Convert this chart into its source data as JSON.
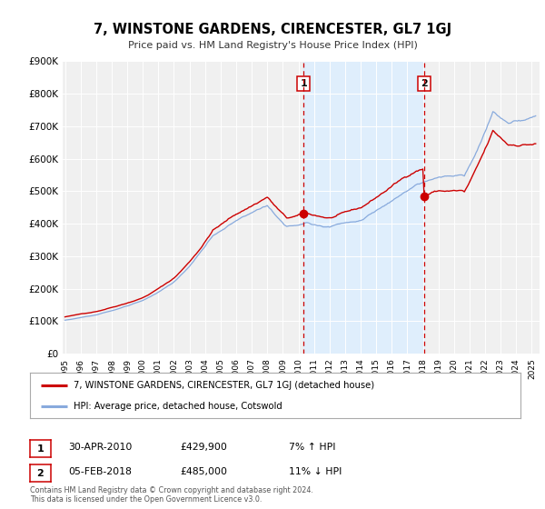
{
  "title": "7, WINSTONE GARDENS, CIRENCESTER, GL7 1GJ",
  "subtitle": "Price paid vs. HM Land Registry's House Price Index (HPI)",
  "ylim": [
    0,
    900000
  ],
  "yticks": [
    0,
    100000,
    200000,
    300000,
    400000,
    500000,
    600000,
    700000,
    800000,
    900000
  ],
  "ytick_labels": [
    "£0",
    "£100K",
    "£200K",
    "£300K",
    "£400K",
    "£500K",
    "£600K",
    "£700K",
    "£800K",
    "£900K"
  ],
  "xlim_start": 1994.85,
  "xlim_end": 2025.5,
  "xticks": [
    1995,
    1996,
    1997,
    1998,
    1999,
    2000,
    2001,
    2002,
    2003,
    2004,
    2005,
    2006,
    2007,
    2008,
    2009,
    2010,
    2011,
    2012,
    2013,
    2014,
    2015,
    2016,
    2017,
    2018,
    2019,
    2020,
    2021,
    2022,
    2023,
    2024,
    2025
  ],
  "property_color": "#cc0000",
  "hpi_color": "#88aadd",
  "shade_color": "#ddeeff",
  "vline_color": "#cc0000",
  "marker1_x": 2010.33,
  "marker1_y": 429900,
  "marker2_x": 2018.09,
  "marker2_y": 485000,
  "legend_property": "7, WINSTONE GARDENS, CIRENCESTER, GL7 1GJ (detached house)",
  "legend_hpi": "HPI: Average price, detached house, Cotswold",
  "annotation1_label": "1",
  "annotation1_date": "30-APR-2010",
  "annotation1_price": "£429,900",
  "annotation1_hpi": "7% ↑ HPI",
  "annotation2_label": "2",
  "annotation2_date": "05-FEB-2018",
  "annotation2_price": "£485,000",
  "annotation2_hpi": "11% ↓ HPI",
  "footer1": "Contains HM Land Registry data © Crown copyright and database right 2024.",
  "footer2": "This data is licensed under the Open Government Licence v3.0.",
  "background_color": "#ffffff",
  "plot_bg_color": "#f0f0f0"
}
